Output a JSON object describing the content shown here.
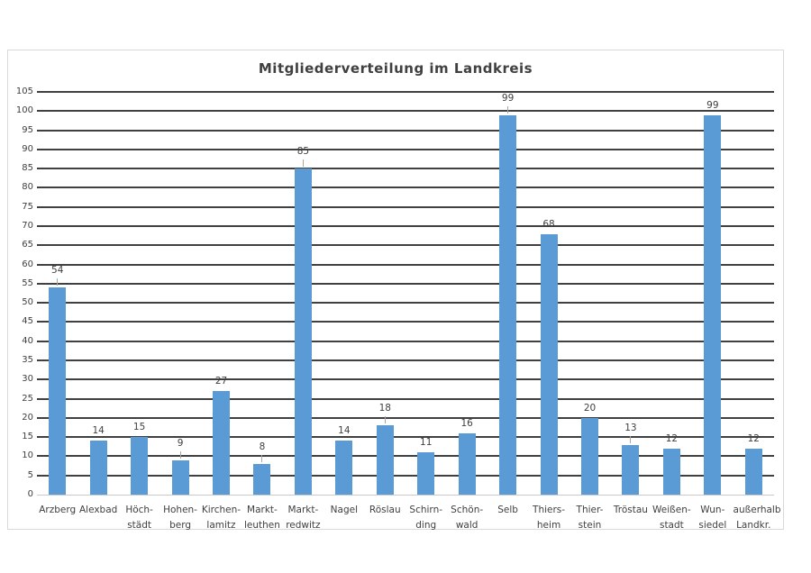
{
  "chart": {
    "title": "Mitgliederverteilung im Landkreis"
  },
  "colors": {
    "bar": "#5B9BD5",
    "gridline": "#404040",
    "baseline": "#C9C9C9",
    "text": "#404040",
    "frame_border": "#D9D9D9",
    "background": "#FFFFFF"
  },
  "chart_data": {
    "type": "bar",
    "title": "Mitgliederverteilung im Landkreis",
    "categories": [
      "Arzberg",
      "Alexbad",
      "Höchstädt",
      "Hohenberg",
      "Kirchenlamitz",
      "Marktleuthen",
      "Marktredwitz",
      "Nagel",
      "Röslau",
      "Schirnding",
      "Schönwald",
      "Selb",
      "Thiersheim",
      "Thierstein",
      "Tröstau",
      "Weißenstadt",
      "Wunsiedel",
      "außerhalb Landkr."
    ],
    "category_label_lines": [
      [
        "Arzberg"
      ],
      [
        "Alexbad"
      ],
      [
        "Höch-",
        "städt"
      ],
      [
        "Hohen-",
        "berg"
      ],
      [
        "Kirchen-",
        "lamitz"
      ],
      [
        "Markt-",
        "leuthen"
      ],
      [
        "Markt-",
        "redwitz"
      ],
      [
        "Nagel"
      ],
      [
        "Röslau"
      ],
      [
        "Schirn-",
        "ding"
      ],
      [
        "Schön-",
        "wald"
      ],
      [
        "Selb"
      ],
      [
        "Thiers-",
        "heim"
      ],
      [
        "Thier-",
        "stein"
      ],
      [
        "Tröstau"
      ],
      [
        "Weißen-",
        "stadt"
      ],
      [
        "Wun-",
        "siedel"
      ],
      [
        "außerhalb",
        "Landkr."
      ]
    ],
    "values": [
      54,
      14,
      15,
      9,
      27,
      8,
      85,
      14,
      18,
      11,
      16,
      99,
      68,
      20,
      13,
      12,
      99,
      12
    ],
    "xlabel": "",
    "ylabel": "",
    "ylim": [
      0,
      105
    ],
    "ytick_step": 5,
    "ytick_labels": [
      "0",
      "5",
      "10",
      "15",
      "20",
      "25",
      "30",
      "35",
      "40",
      "45",
      "50",
      "55",
      "60",
      "65",
      "70",
      "75",
      "80",
      "85",
      "90",
      "95",
      "100",
      "105"
    ],
    "grid": true,
    "legend": "none",
    "leader_line_indices": [
      0,
      3,
      5,
      6,
      8,
      11,
      14
    ]
  }
}
